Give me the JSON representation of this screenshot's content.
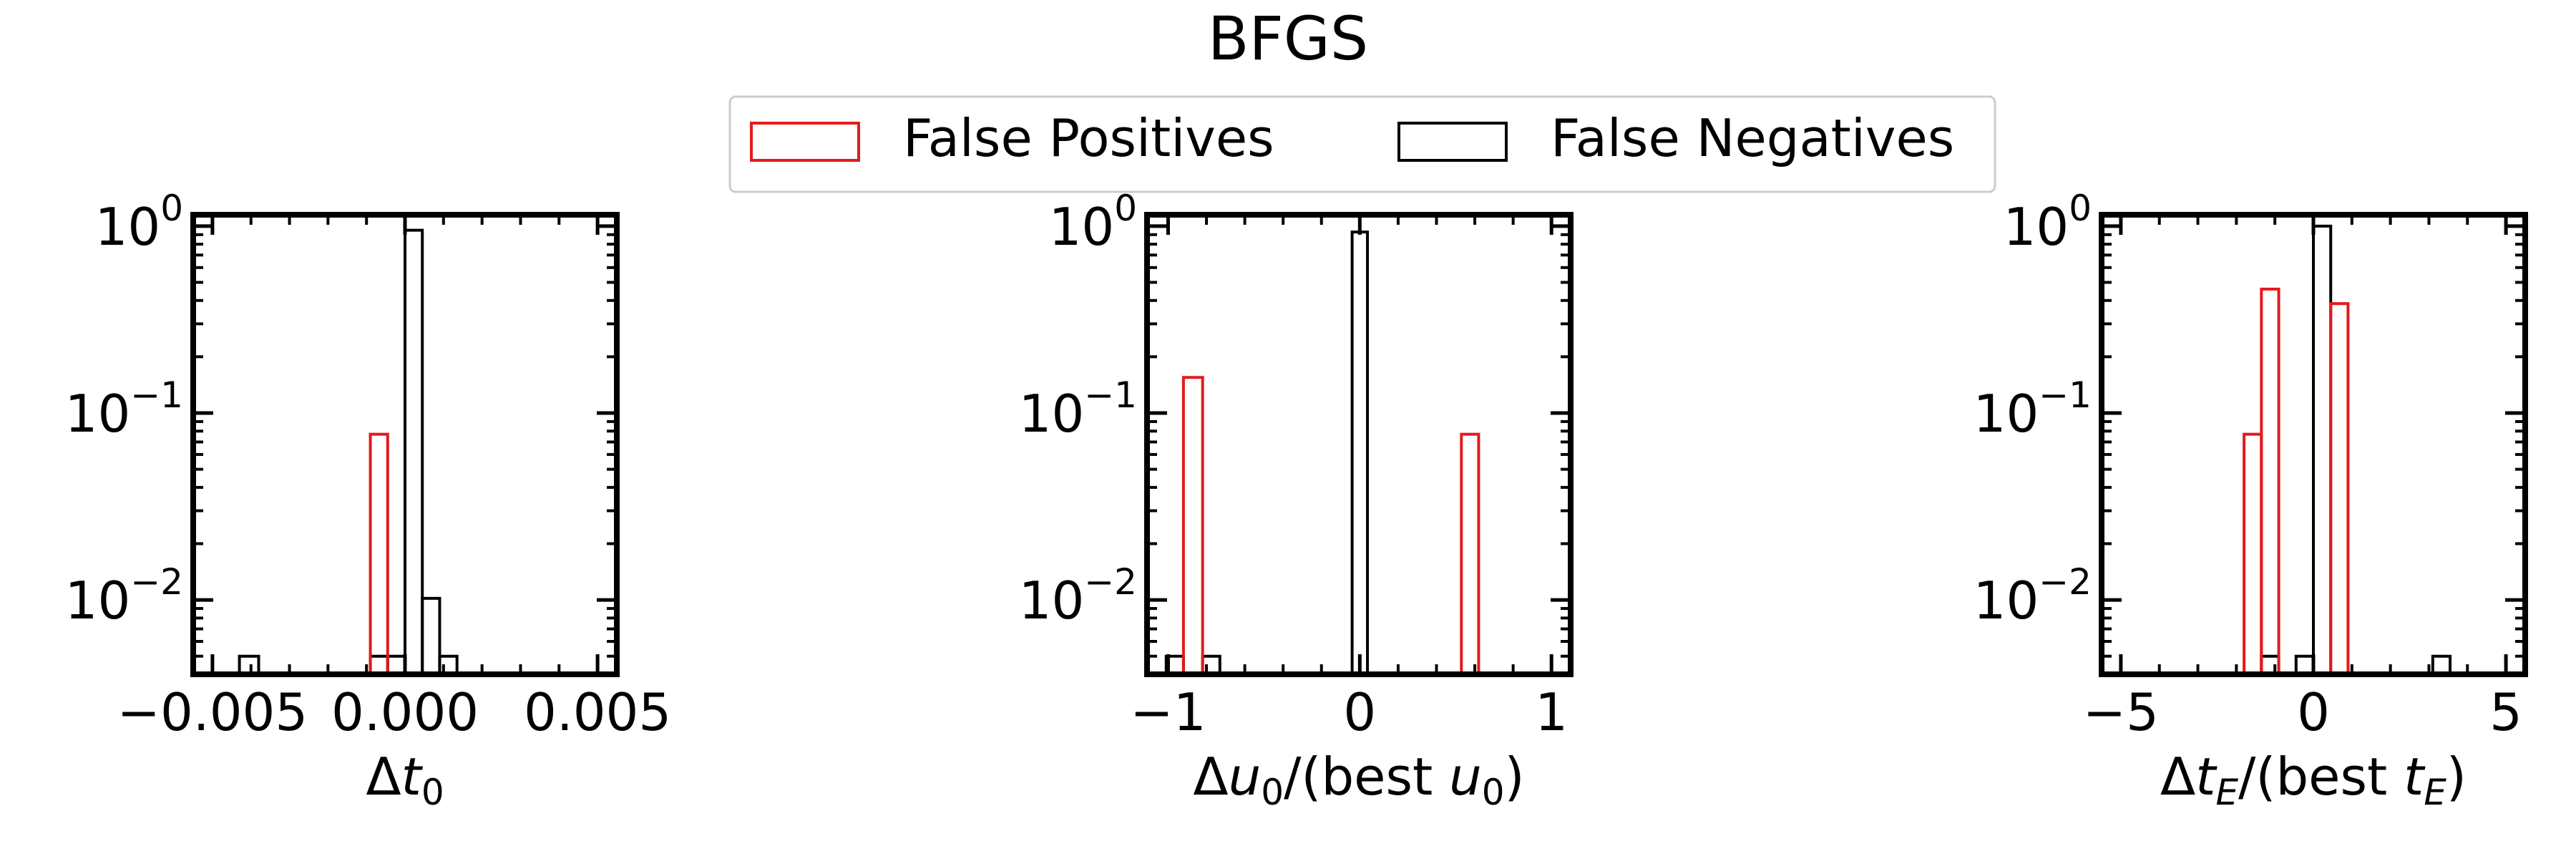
{
  "title": "BFGS",
  "legend": {
    "placement": "top-center",
    "entries": [
      {
        "label": "False Positives",
        "color": "#e31a1c"
      },
      {
        "label": "False Negatives",
        "color": "#000000"
      }
    ]
  },
  "colors": {
    "false_positives": "#e31a1c",
    "false_negatives": "#000000",
    "axes": "#000000"
  },
  "chart_data": [
    {
      "type": "bar",
      "histtype": "step",
      "xlabel_base": "Δ",
      "xlabel_var": "t",
      "xlabel_sub": "0",
      "xlabel_suffix": "",
      "xlim": [
        -0.0055,
        0.0055
      ],
      "xticks": [
        -0.005,
        0,
        0.005
      ],
      "xticklabels": [
        "−0.005",
        "0.000",
        "0.005"
      ],
      "yscale": "log",
      "ylim": [
        0.004,
        1.15
      ],
      "yticks": [
        1,
        0.1,
        0.01
      ],
      "yticklabels": [
        {
          "base": "10",
          "exp": "0"
        },
        {
          "base": "10",
          "exp": "−1"
        },
        {
          "base": "10",
          "exp": "−2"
        }
      ],
      "series": [
        {
          "name": "False Positives",
          "color": "#e31a1c",
          "bins": [
            {
              "x0": -0.0009,
              "x1": -0.00045,
              "value": 0.077
            }
          ]
        },
        {
          "name": "False Negatives",
          "color": "#000000",
          "bins": [
            {
              "x0": -0.0043,
              "x1": -0.0038,
              "value": 0.005
            },
            {
              "x0": -0.0009,
              "x1": -0.00045,
              "value": 0.005
            },
            {
              "x0": -0.00045,
              "x1": 0.0,
              "value": 0.005
            },
            {
              "x0": 0.0,
              "x1": 0.00045,
              "value": 0.95
            },
            {
              "x0": 0.00045,
              "x1": 0.0009,
              "value": 0.0102
            },
            {
              "x0": 0.0009,
              "x1": 0.00135,
              "value": 0.005
            }
          ]
        }
      ]
    },
    {
      "type": "bar",
      "histtype": "step",
      "xlabel_base": "Δ",
      "xlabel_var": "u",
      "xlabel_sub": "0",
      "xlabel_suffix": "/(best ",
      "xlabel_var2": "u",
      "xlabel_sub2": "0",
      "xlabel_close": ")",
      "xlim": [
        -1.11,
        1.1
      ],
      "xticks": [
        -1,
        0,
        1
      ],
      "xticklabels": [
        "−1",
        "0",
        "1"
      ],
      "yscale": "log",
      "ylim": [
        0.004,
        1.15
      ],
      "yticks": [
        1,
        0.1,
        0.01
      ],
      "yticklabels": [
        {
          "base": "10",
          "exp": "0"
        },
        {
          "base": "10",
          "exp": "−1"
        },
        {
          "base": "10",
          "exp": "−2"
        }
      ],
      "series": [
        {
          "name": "False Positives",
          "color": "#e31a1c",
          "bins": [
            {
              "x0": -0.92,
              "x1": -0.82,
              "value": 0.155
            },
            {
              "x0": 0.53,
              "x1": 0.62,
              "value": 0.077
            }
          ]
        },
        {
          "name": "False Negatives",
          "color": "#000000",
          "bins": [
            {
              "x0": -1.01,
              "x1": -0.92,
              "value": 0.005
            },
            {
              "x0": -0.82,
              "x1": -0.73,
              "value": 0.005
            },
            {
              "x0": -0.04,
              "x1": 0.04,
              "value": 0.93
            }
          ]
        }
      ]
    },
    {
      "type": "bar",
      "histtype": "step",
      "xlabel_base": "Δ",
      "xlabel_var": "t",
      "xlabel_sub": "E",
      "xlabel_suffix": "/(best ",
      "xlabel_var2": "t",
      "xlabel_sub2": "E",
      "xlabel_close": ")",
      "xlim": [
        -5.5,
        5.5
      ],
      "xticks": [
        -5,
        0,
        5
      ],
      "xticklabels": [
        "−5",
        "0",
        "5"
      ],
      "yscale": "log",
      "ylim": [
        0.004,
        1.15
      ],
      "yticks": [
        1,
        0.1,
        0.01
      ],
      "yticklabels": [
        {
          "base": "10",
          "exp": "0"
        },
        {
          "base": "10",
          "exp": "−1"
        },
        {
          "base": "10",
          "exp": "−2"
        }
      ],
      "series": [
        {
          "name": "False Positives",
          "color": "#e31a1c",
          "bins": [
            {
              "x0": -1.8,
              "x1": -1.35,
              "value": 0.077
            },
            {
              "x0": -1.35,
              "x1": -0.9,
              "value": 0.46
            },
            {
              "x0": 0.45,
              "x1": 0.9,
              "value": 0.385
            }
          ]
        },
        {
          "name": "False Negatives",
          "color": "#000000",
          "bins": [
            {
              "x0": -1.35,
              "x1": -0.9,
              "value": 0.005
            },
            {
              "x0": -0.45,
              "x1": 0.0,
              "value": 0.005
            },
            {
              "x0": 0.0,
              "x1": 0.45,
              "value": 1.0
            },
            {
              "x0": 3.1,
              "x1": 3.55,
              "value": 0.005
            }
          ]
        }
      ]
    }
  ]
}
